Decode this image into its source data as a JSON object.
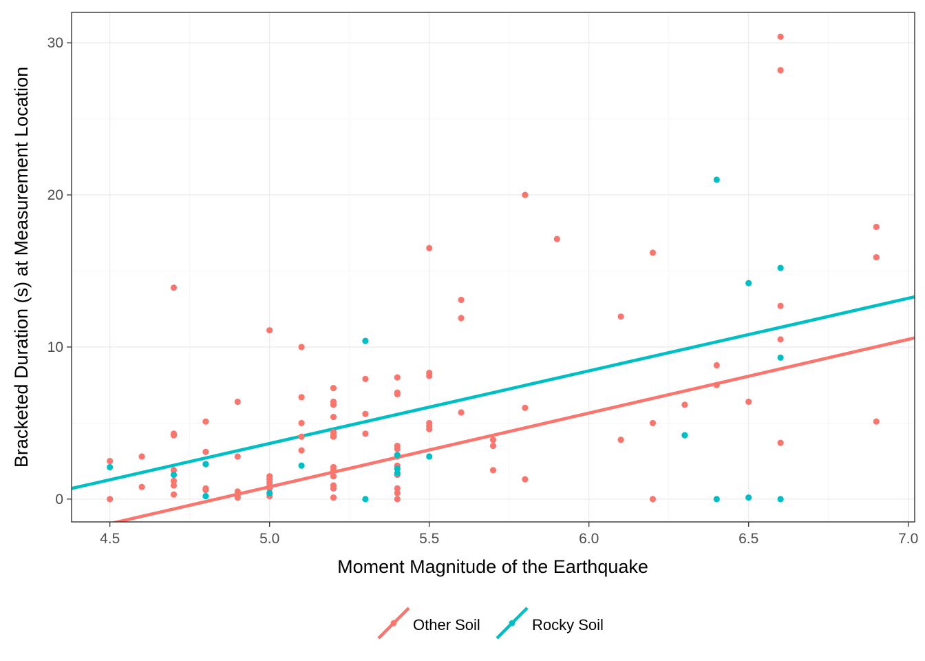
{
  "chart_data": {
    "type": "scatter",
    "title": "",
    "xlabel": "Moment Magnitude of the Earthquake",
    "ylabel": "Bracketed Duration (s) at Measurement Location",
    "xlim": [
      4.38,
      7.02
    ],
    "ylim": [
      -1.5,
      32.0
    ],
    "x_ticks": [
      4.5,
      5.0,
      5.5,
      6.0,
      6.5,
      7.0
    ],
    "x_tick_labels": [
      "4.5",
      "5.0",
      "5.5",
      "6.0",
      "6.5",
      "7.0"
    ],
    "y_ticks": [
      0,
      10,
      20,
      30
    ],
    "y_tick_labels": [
      "0",
      "10",
      "20",
      "30"
    ],
    "grid": true,
    "legend_position": "bottom",
    "series": [
      {
        "name": "Other Soil",
        "color": "#f8766d",
        "fit_line": {
          "x": [
            4.38,
            7.02
          ],
          "y": [
            -2.2,
            10.6
          ]
        },
        "points": [
          [
            4.5,
            2.5
          ],
          [
            4.5,
            0.0
          ],
          [
            4.6,
            2.8
          ],
          [
            4.6,
            0.8
          ],
          [
            4.7,
            13.9
          ],
          [
            4.7,
            4.3
          ],
          [
            4.7,
            4.2
          ],
          [
            4.7,
            1.9
          ],
          [
            4.7,
            1.2
          ],
          [
            4.7,
            0.9
          ],
          [
            4.7,
            0.3
          ],
          [
            4.8,
            5.1
          ],
          [
            4.8,
            3.1
          ],
          [
            4.8,
            2.3
          ],
          [
            4.8,
            0.7
          ],
          [
            4.8,
            0.6
          ],
          [
            4.9,
            6.4
          ],
          [
            4.9,
            2.8
          ],
          [
            4.9,
            0.5
          ],
          [
            4.9,
            0.3
          ],
          [
            4.9,
            0.1
          ],
          [
            5.0,
            11.1
          ],
          [
            5.0,
            1.5
          ],
          [
            5.0,
            1.3
          ],
          [
            5.0,
            1.1
          ],
          [
            5.0,
            0.9
          ],
          [
            5.0,
            0.7
          ],
          [
            5.0,
            0.2
          ],
          [
            5.1,
            10.0
          ],
          [
            5.1,
            6.7
          ],
          [
            5.1,
            5.0
          ],
          [
            5.1,
            4.1
          ],
          [
            5.1,
            3.2
          ],
          [
            5.2,
            7.3
          ],
          [
            5.2,
            6.4
          ],
          [
            5.2,
            6.2
          ],
          [
            5.2,
            5.4
          ],
          [
            5.2,
            4.4
          ],
          [
            5.2,
            4.2
          ],
          [
            5.2,
            4.1
          ],
          [
            5.2,
            2.1
          ],
          [
            5.2,
            1.9
          ],
          [
            5.2,
            1.5
          ],
          [
            5.2,
            0.9
          ],
          [
            5.2,
            0.7
          ],
          [
            5.2,
            0.1
          ],
          [
            5.3,
            7.9
          ],
          [
            5.3,
            5.6
          ],
          [
            5.3,
            4.3
          ],
          [
            5.4,
            8.0
          ],
          [
            5.4,
            7.0
          ],
          [
            5.4,
            6.9
          ],
          [
            5.4,
            3.5
          ],
          [
            5.4,
            3.3
          ],
          [
            5.4,
            2.8
          ],
          [
            5.4,
            2.2
          ],
          [
            5.4,
            1.6
          ],
          [
            5.4,
            0.7
          ],
          [
            5.4,
            0.4
          ],
          [
            5.4,
            0.0
          ],
          [
            5.5,
            16.5
          ],
          [
            5.5,
            8.3
          ],
          [
            5.5,
            8.1
          ],
          [
            5.5,
            5.0
          ],
          [
            5.5,
            4.8
          ],
          [
            5.5,
            4.6
          ],
          [
            5.6,
            13.1
          ],
          [
            5.6,
            11.9
          ],
          [
            5.6,
            5.7
          ],
          [
            5.7,
            3.9
          ],
          [
            5.7,
            3.5
          ],
          [
            5.7,
            1.9
          ],
          [
            5.8,
            20.0
          ],
          [
            5.8,
            6.0
          ],
          [
            5.8,
            1.3
          ],
          [
            5.9,
            17.1
          ],
          [
            6.1,
            12.0
          ],
          [
            6.1,
            3.9
          ],
          [
            6.2,
            16.2
          ],
          [
            6.2,
            5.0
          ],
          [
            6.2,
            0.0
          ],
          [
            6.3,
            6.2
          ],
          [
            6.4,
            8.8
          ],
          [
            6.4,
            7.5
          ],
          [
            6.5,
            6.4
          ],
          [
            6.6,
            30.4
          ],
          [
            6.6,
            28.2
          ],
          [
            6.6,
            12.7
          ],
          [
            6.6,
            10.5
          ],
          [
            6.6,
            3.7
          ],
          [
            6.9,
            17.9
          ],
          [
            6.9,
            15.9
          ],
          [
            6.9,
            5.1
          ]
        ]
      },
      {
        "name": "Rocky Soil",
        "color": "#00bfc4",
        "fit_line": {
          "x": [
            4.38,
            7.02
          ],
          "y": [
            0.7,
            13.3
          ]
        },
        "points": [
          [
            4.5,
            2.1
          ],
          [
            4.7,
            1.6
          ],
          [
            4.8,
            2.3
          ],
          [
            4.8,
            0.2
          ],
          [
            5.0,
            0.4
          ],
          [
            5.1,
            2.2
          ],
          [
            5.3,
            10.4
          ],
          [
            5.3,
            0.0
          ],
          [
            5.4,
            2.9
          ],
          [
            5.4,
            2.0
          ],
          [
            5.4,
            1.7
          ],
          [
            5.5,
            2.8
          ],
          [
            6.3,
            4.2
          ],
          [
            6.4,
            21.0
          ],
          [
            6.4,
            0.0
          ],
          [
            6.5,
            14.2
          ],
          [
            6.5,
            0.1
          ],
          [
            6.6,
            15.2
          ],
          [
            6.6,
            9.3
          ],
          [
            6.6,
            0.0
          ]
        ]
      }
    ]
  }
}
